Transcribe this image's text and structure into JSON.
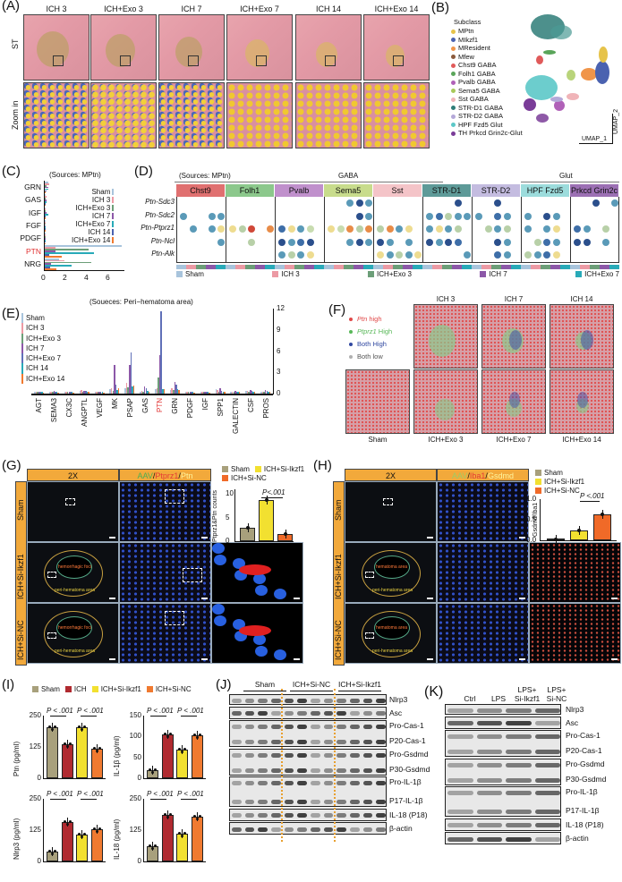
{
  "panels": {
    "A": {
      "label": "(A)",
      "columns": [
        "ICH 3",
        "ICH+Exo 3",
        "ICH 7",
        "ICH+Exo 7",
        "ICH 14",
        "ICH+Exo 14"
      ],
      "row_labels": [
        "ST",
        "Zoom in"
      ]
    },
    "B": {
      "label": "(B)",
      "legend_title": "Subclass",
      "legend": [
        {
          "name": "MPtn",
          "color": "#e6c34a"
        },
        {
          "name": "MIkzf1",
          "color": "#4a62b0"
        },
        {
          "name": "MResident",
          "color": "#f0954a"
        },
        {
          "name": "Mfew",
          "color": "#8a5a3c"
        },
        {
          "name": "Chst9 GABA",
          "color": "#e05a5a"
        },
        {
          "name": "Folh1 GABA",
          "color": "#5aa55a"
        },
        {
          "name": "Pvalb GABA",
          "color": "#b061b8"
        },
        {
          "name": "Sema5 GABA",
          "color": "#a8c95a"
        },
        {
          "name": "Sst GABA",
          "color": "#f0b4b8"
        },
        {
          "name": "STR-D1 GABA",
          "color": "#2e7d78"
        },
        {
          "name": "STR-D2 GABA",
          "color": "#b4a8d8"
        },
        {
          "name": "HPF Fzd5 Glut",
          "color": "#5cc8c8"
        },
        {
          "name": "TH Prkcd Grin2c-Glut",
          "color": "#7a3c98"
        }
      ],
      "axis_x": "UMAP_1",
      "axis_y": "UMAP_2"
    },
    "C": {
      "label": "(C)",
      "source": "(Sources: MPtn)",
      "legend": [
        "Sham",
        "ICH 3",
        "ICH+Exo 3",
        "ICH 7",
        "ICH+Exo 7",
        "ICH 14",
        "ICH+Exo 14"
      ],
      "xticks": [
        "0",
        "2",
        "4",
        "6"
      ]
    },
    "D": {
      "label": "(D)",
      "source": "(Sources: MPtn)",
      "group_gaba": "GABA",
      "group_glut": "Glut",
      "columns": [
        {
          "name": "Chst9",
          "color": "#e07070"
        },
        {
          "name": "Folh1",
          "color": "#8cc88c"
        },
        {
          "name": "Pvalb",
          "color": "#c090cc"
        },
        {
          "name": "Sema5",
          "color": "#c8dc8c"
        },
        {
          "name": "Sst",
          "color": "#f4c4c8"
        },
        {
          "name": "STR-D1",
          "color": "#5e9a98"
        },
        {
          "name": "STR-D2",
          "color": "#c4bce0"
        },
        {
          "name": "HPF Fzd5",
          "color": "#9cdcdc"
        },
        {
          "name": "Prkcd Grin2c",
          "color": "#9c70b4"
        }
      ],
      "rows": [
        "Ptn-Sdc3",
        "Ptn-Sdc2",
        "Ptn-Ptprz1",
        "Ptn-Ncl",
        "Ptn-Alk"
      ],
      "legend": [
        {
          "name": "Sham",
          "color": "#a8c4dc"
        },
        {
          "name": "ICH 3",
          "color": "#ec9aa4"
        },
        {
          "name": "ICH+Exo 3",
          "color": "#6c9e78"
        },
        {
          "name": "ICH 7",
          "color": "#8c58a8"
        },
        {
          "name": "ICH+Exo 7",
          "color": "#28aab8"
        }
      ]
    },
    "E": {
      "label": "(E)",
      "source": "(Soueces: Peri−hematoma area)",
      "legend": [
        "Sham",
        "ICH 3",
        "ICH+Exo 3",
        "ICH 7",
        "ICH+Exo 7",
        "ICH 14",
        "ICH+Exo 14"
      ]
    },
    "F": {
      "label": "(F)",
      "legend": [
        {
          "name": "Ptn high",
          "color": "#e04848"
        },
        {
          "name": "Ptprz1 High",
          "color": "#58b858"
        },
        {
          "name": "Both High",
          "color": "#3048a0"
        },
        {
          "name": "Both low",
          "color": "#b0b0b0"
        }
      ],
      "top_labels": [
        "ICH 3",
        "ICH 7",
        "ICH 14"
      ],
      "bottom_labels": [
        "Sham",
        "ICH+Exo 3",
        "ICH+Exo 7",
        "ICH+Exo 14"
      ]
    },
    "G": {
      "label": "(G)",
      "col_headers": [
        "2X",
        "AAV/Ptprz1/Ptn"
      ],
      "header_parts": [
        {
          "t": "AAV",
          "c": "#4caf50"
        },
        {
          "t": "/",
          "c": "#111"
        },
        {
          "t": "Ptprz1",
          "c": "#e53935"
        },
        {
          "t": "/",
          "c": "#111"
        },
        {
          "t": "Ptn",
          "c": "#fff59d"
        }
      ],
      "row_labels": [
        "Sham",
        "ICH+Si-Ikzf1",
        "ICH+Si-NC"
      ],
      "annotations": [
        "hemorrhagic foci",
        "peri-hematoma area"
      ],
      "legend": [
        {
          "name": "Sham",
          "color": "#a8a07c"
        },
        {
          "name": "ICH+Si-Ikzf1",
          "color": "#f2e030"
        },
        {
          "name": "ICH+Si-NC",
          "color": "#f06a28"
        }
      ],
      "ylabel": "Ptprz1&Ptn counts",
      "yticks": [
        "0",
        "5",
        "10"
      ],
      "pvalue": "P<.001"
    },
    "H": {
      "label": "(H)",
      "col_headers": [
        "2X",
        "AAV/Iba1/Gsdmd"
      ],
      "header_parts": [
        {
          "t": "AAV",
          "c": "#9ccc65"
        },
        {
          "t": "/",
          "c": "#111"
        },
        {
          "t": "Iba1",
          "c": "#e53935"
        },
        {
          "t": "/",
          "c": "#111"
        },
        {
          "t": "Gsdmd",
          "c": "#fff59d"
        }
      ],
      "row_labels": [
        "Sham",
        "ICH+Si-Ikzf1",
        "ICH+Si-NC"
      ],
      "annotations": [
        "hematoma area",
        "peri-hematoma area"
      ],
      "legend": [
        {
          "name": "Sham",
          "color": "#a8a07c"
        },
        {
          "name": "ICH+Si-Ikzf1",
          "color": "#f2e030"
        },
        {
          "name": "ICH+Si-NC",
          "color": "#f06a28"
        }
      ],
      "ylabel": "Gsdmd/Iba1",
      "yticks": [
        "0.0",
        "0.5",
        "1.0"
      ],
      "pvalue": "P <.001"
    },
    "I": {
      "label": "(I)",
      "legend": [
        {
          "name": "Sham",
          "color": "#a8a07c"
        },
        {
          "name": "ICH",
          "color": "#b02a30"
        },
        {
          "name": "ICH+Si-Ikzf1",
          "color": "#f2e030"
        },
        {
          "name": "ICH+Si-NC",
          "color": "#f07a30"
        }
      ],
      "pvalue": "P < .001"
    },
    "J": {
      "label": "(J)",
      "groups": [
        "Sham",
        "ICH+Si-NC",
        "ICH+Si-Ikzf1"
      ],
      "bands": [
        "Nlrp3",
        "Asc",
        "Pro-Cas-1",
        "P20-Cas-1",
        "Pro-Gsdmd",
        "P30-Gsdmd",
        "Pro-IL-1β",
        "P17-IL-1β",
        "IL-18 (P18)",
        "β-actin"
      ]
    },
    "K": {
      "label": "(K)",
      "groups": [
        "Ctrl",
        "LPS",
        "LPS+\nSi-Ikzf1",
        "LPS+\nSi-NC"
      ],
      "group_line1": [
        "Ctrl",
        "LPS",
        "LPS+",
        "LPS+"
      ],
      "group_line2": [
        "",
        "",
        "Si-Ikzf1",
        "Si-NC"
      ],
      "bands": [
        "Nlrp3",
        "Asc",
        "Pro-Cas-1",
        "P20-Cas-1",
        "Pro-Gsdmd",
        "P30-Gsdmd",
        "Pro-IL-1β",
        "P17-IL-1β",
        "IL-18 (P18)",
        "β-actin"
      ]
    }
  },
  "chart_data": [
    {
      "panel": "C",
      "type": "bar",
      "orientation": "horizontal",
      "title": "(Sources: MPtn)",
      "categories": [
        "GRN",
        "GAS",
        "IGF",
        "FGF",
        "PDGF",
        "PTN",
        "NRG"
      ],
      "series": [
        {
          "name": "Sham",
          "color": "#a8c4dc",
          "values": [
            0.3,
            0.1,
            0.1,
            0.05,
            0.05,
            7.2,
            1.3
          ]
        },
        {
          "name": "ICH 3",
          "color": "#ec9aa4",
          "values": [
            0.4,
            0.2,
            0.1,
            0.05,
            0.05,
            1.0,
            1.8
          ]
        },
        {
          "name": "ICH+Exo 3",
          "color": "#6c9e78",
          "values": [
            0.2,
            0.1,
            0.1,
            0.05,
            0.05,
            4.1,
            4.3
          ]
        },
        {
          "name": "ICH 7",
          "color": "#8c58a8",
          "values": [
            0.3,
            0.2,
            0.2,
            0.1,
            0.1,
            1.0,
            0.6
          ]
        },
        {
          "name": "ICH+Exo 7",
          "color": "#28aab8",
          "values": [
            0.3,
            0.2,
            0.3,
            0.1,
            0.1,
            4.6,
            2.5
          ]
        },
        {
          "name": "ICH 14",
          "color": "#4a62b0",
          "values": [
            0.2,
            0.1,
            0.1,
            0.1,
            0.1,
            0.4,
            0.5
          ]
        },
        {
          "name": "ICH+Exo 14",
          "color": "#f07a30",
          "values": [
            0.1,
            0.1,
            0.1,
            0.05,
            0.05,
            1.6,
            1.1
          ]
        }
      ],
      "xlim": [
        0,
        7.5
      ],
      "xticks": [
        0,
        2,
        4,
        6
      ]
    },
    {
      "panel": "E",
      "type": "bar",
      "title": "(Soueces: Peri−hematoma area)",
      "categories": [
        "AGT",
        "SEMA3",
        "CX3C",
        "ANGPTL",
        "VEGF",
        "MK",
        "PSAP",
        "GAS",
        "PTN",
        "GRN",
        "PDGF",
        "IGF",
        "SPP1",
        "GALECTIN",
        "CSF",
        "PROS"
      ],
      "series": [
        {
          "name": "Sham",
          "color": "#a8c4dc",
          "values": [
            0.2,
            0.2,
            0.2,
            0.4,
            0.2,
            0.6,
            0.8,
            0.3,
            0.6,
            0.5,
            0.3,
            0.2,
            0.6,
            0.3,
            0.4,
            0.3
          ]
        },
        {
          "name": "ICH 3",
          "color": "#ec9aa4",
          "values": [
            0.2,
            0.2,
            0.2,
            0.5,
            0.2,
            0.7,
            1.5,
            0.4,
            0.8,
            0.8,
            0.2,
            0.2,
            0.5,
            0.3,
            0.4,
            0.3
          ]
        },
        {
          "name": "ICH+Exo 3",
          "color": "#6c9e78",
          "values": [
            0.2,
            0.2,
            0.2,
            0.3,
            0.2,
            0.4,
            0.9,
            0.3,
            2.3,
            0.5,
            0.2,
            0.2,
            0.3,
            0.3,
            0.3,
            0.3
          ]
        },
        {
          "name": "ICH 7",
          "color": "#8c58a8",
          "values": [
            0.3,
            0.4,
            0.3,
            0.4,
            0.3,
            4.1,
            4.0,
            1.0,
            5.4,
            1.7,
            0.3,
            0.3,
            0.8,
            0.4,
            0.5,
            0.5
          ]
        },
        {
          "name": "ICH+Exo 7",
          "color": "#6070b8",
          "values": [
            0.2,
            0.3,
            0.2,
            0.4,
            0.2,
            1.3,
            5.8,
            0.7,
            11.6,
            1.3,
            0.2,
            0.2,
            0.4,
            0.3,
            0.4,
            0.4
          ]
        },
        {
          "name": "ICH 14",
          "color": "#28aab8",
          "values": [
            0.2,
            0.2,
            0.2,
            0.3,
            0.2,
            0.5,
            1.0,
            0.4,
            0.6,
            0.6,
            0.2,
            0.2,
            0.3,
            0.2,
            0.3,
            0.3
          ]
        },
        {
          "name": "ICH+Exo 14",
          "color": "#f07a30",
          "values": [
            0.1,
            0.1,
            0.1,
            0.2,
            0.1,
            0.7,
            1.1,
            0.3,
            0.6,
            0.5,
            0.1,
            0.1,
            0.2,
            0.2,
            0.2,
            0.2
          ]
        }
      ],
      "ylim": [
        0,
        12
      ],
      "yticks": [
        0,
        3,
        6,
        9,
        12
      ],
      "ylabel_position": "right"
    },
    {
      "panel": "G",
      "type": "bar",
      "categories": [
        "Sham",
        "ICH+Si-Ikzf1",
        "ICH+Si-NC"
      ],
      "values": [
        2.8,
        8.7,
        1.6
      ],
      "ylabel": "Ptprz1&Ptn counts",
      "ylim": [
        0,
        11
      ],
      "yticks": [
        0,
        5,
        10
      ],
      "annotation": "P<.001"
    },
    {
      "panel": "H",
      "type": "bar",
      "categories": [
        "Sham",
        "ICH+Si-Ikzf1",
        "ICH+Si-NC"
      ],
      "values": [
        0.03,
        0.24,
        0.62
      ],
      "ylabel": "Gsdmd/Iba1",
      "ylim": [
        0,
        1.0
      ],
      "yticks": [
        0.0,
        0.5,
        1.0
      ],
      "annotation": "P <.001"
    },
    {
      "panel": "I-Ptn",
      "type": "bar",
      "categories": [
        "Sham",
        "ICH",
        "ICH+Si-Ikzf1",
        "ICH+Si-NC"
      ],
      "values": [
        205,
        135,
        205,
        118
      ],
      "ylabel": "Ptn (pg/ml)",
      "ylim": [
        0,
        250
      ],
      "yticks": [
        0,
        125,
        250
      ],
      "annotations": [
        "P < .001",
        "P < .001"
      ]
    },
    {
      "panel": "I-IL1b",
      "type": "bar",
      "categories": [
        "Sham",
        "ICH",
        "ICH+Si-Ikzf1",
        "ICH+Si-NC"
      ],
      "values": [
        20,
        106,
        68,
        102
      ],
      "ylabel": "IL-1β (pg/ml)",
      "ylim": [
        0,
        150
      ],
      "yticks": [
        0,
        50,
        100,
        150
      ],
      "annotations": [
        "P < .001",
        "P < .001"
      ]
    },
    {
      "panel": "I-Nlrp3",
      "type": "bar",
      "categories": [
        "Sham",
        "ICH",
        "ICH+Si-Ikzf1",
        "ICH+Si-NC"
      ],
      "values": [
        40,
        158,
        108,
        128
      ],
      "ylabel": "Nlrp3 (pg/ml)",
      "ylim": [
        0,
        250
      ],
      "yticks": [
        0,
        125,
        250
      ],
      "annotations": [
        "P < .001",
        "P < .001"
      ]
    },
    {
      "panel": "I-IL18",
      "type": "bar",
      "categories": [
        "Sham",
        "ICH",
        "ICH+Si-Ikzf1",
        "ICH+Si-NC"
      ],
      "values": [
        60,
        185,
        112,
        180
      ],
      "ylabel": "IL-18 (pg/ml)",
      "ylim": [
        0,
        250
      ],
      "yticks": [
        0,
        125,
        250
      ],
      "annotations": [
        "P < .001",
        "P < .001"
      ]
    }
  ]
}
